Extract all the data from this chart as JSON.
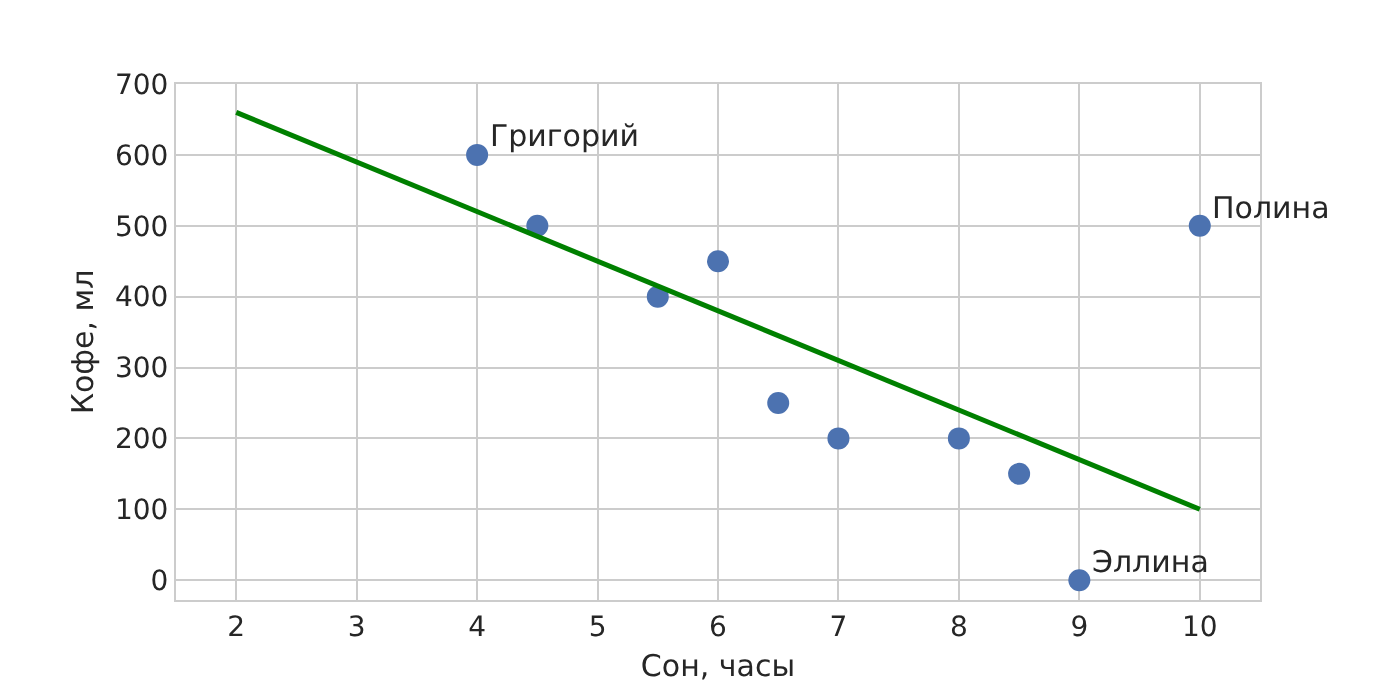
{
  "chart_data": {
    "type": "scatter",
    "xlabel": "Сон, часы",
    "ylabel": "Кофе, мл",
    "x": [
      4,
      4.5,
      5.5,
      6,
      6.5,
      7,
      8,
      8.5,
      9,
      10
    ],
    "grid": true,
    "marker": "circle",
    "xlim": [
      1.5,
      10.5
    ],
    "ylim": [
      -28,
      700
    ],
    "xticks": [
      2,
      3,
      4,
      5,
      6,
      7,
      8,
      9,
      10
    ],
    "yticks": [
      0,
      100,
      200,
      300,
      400,
      500,
      600,
      700
    ],
    "series": [
      {
        "color": "#4c72b0",
        "values": [
          600,
          500,
          400,
          450,
          250,
          200,
          200,
          150,
          0,
          500
        ]
      },
      {
        "type": "line",
        "color": "#008000",
        "x": [
          2,
          10
        ],
        "values": [
          660,
          100
        ],
        "marker": "none",
        "line_style": "solid"
      }
    ],
    "annotations": [
      {
        "text": "Григорий",
        "x": 4,
        "y": 600
      },
      {
        "text": "Эллина",
        "x": 9,
        "y": 0
      },
      {
        "text": "Полина",
        "x": 10,
        "y": 500
      }
    ]
  }
}
